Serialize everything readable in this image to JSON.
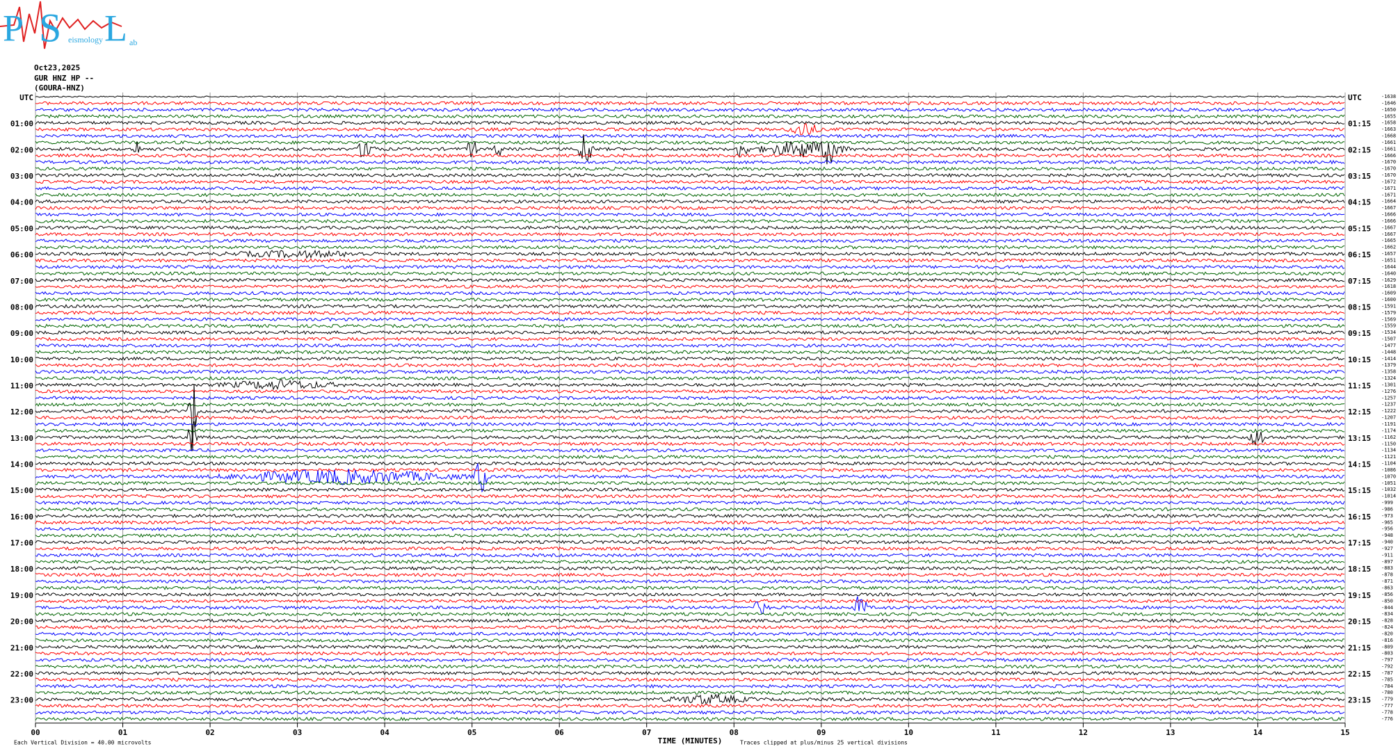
{
  "logo": {
    "letters": [
      "P",
      "S",
      "L"
    ],
    "words": [
      "eismology",
      "ab"
    ]
  },
  "chart_data": {
    "type": "helicorder",
    "date": "Oct23,2025",
    "station": "GUR HNZ HP --",
    "station_name": "(GOURA-HNZ)",
    "left_labels": [
      "UTC",
      "01:00",
      "02:00",
      "03:00",
      "04:00",
      "05:00",
      "06:00",
      "07:00",
      "08:00",
      "09:00",
      "10:00",
      "11:00",
      "12:00",
      "13:00",
      "14:00",
      "15:00",
      "16:00",
      "17:00",
      "18:00",
      "19:00",
      "20:00",
      "21:00",
      "22:00",
      "23:00"
    ],
    "right_labels": [
      "UTC",
      "01:15",
      "02:15",
      "03:15",
      "04:15",
      "05:15",
      "06:15",
      "07:15",
      "08:15",
      "09:15",
      "10:15",
      "11:15",
      "12:15",
      "13:15",
      "14:15",
      "15:15",
      "16:15",
      "17:15",
      "18:15",
      "19:15",
      "20:15",
      "21:15",
      "22:15",
      "23:15"
    ],
    "trace_colors": [
      "#000000",
      "#ff0000",
      "#0000ff",
      "#006400"
    ],
    "trace_offsets": [
      -1638,
      -1646,
      -1650,
      -1655,
      -1658,
      -1663,
      -1668,
      -1661,
      -1661,
      -1666,
      -1670,
      -1670,
      -1670,
      -1672,
      -1671,
      -1671,
      -1664,
      -1667,
      -1666,
      -1666,
      -1667,
      -1667,
      -1665,
      -1662,
      -1657,
      -1651,
      -1644,
      -1640,
      -1629,
      -1618,
      -1609,
      -1600,
      -1591,
      -1579,
      -1569,
      -1559,
      -1534,
      -1507,
      -1477,
      -1448,
      -1414,
      -1379,
      -1358,
      -1324,
      -1301,
      -1276,
      -1257,
      -1237,
      -1222,
      -1207,
      -1191,
      -1174,
      -1162,
      -1150,
      -1134,
      -1121,
      -1104,
      -1086,
      -1070,
      -1051,
      -1032,
      -1014,
      -999,
      -986,
      -973,
      -965,
      -956,
      -948,
      -940,
      -927,
      -911,
      -897,
      -883,
      -878,
      -871,
      -863,
      -856,
      -850,
      -844,
      -834,
      -828,
      -824,
      -820,
      -816,
      -809,
      -803,
      -797,
      -792,
      -787,
      -785,
      -784,
      -780,
      -779,
      -777,
      -778,
      -776
    ],
    "xlim": [
      0,
      15
    ],
    "xticks": [
      {
        "value": 0,
        "label": "00"
      },
      {
        "value": 1,
        "label": "01"
      },
      {
        "value": 2,
        "label": "02"
      },
      {
        "value": 3,
        "label": "03"
      },
      {
        "value": 4,
        "label": "04"
      },
      {
        "value": 5,
        "label": "05"
      },
      {
        "value": 6,
        "label": "06"
      },
      {
        "value": 7,
        "label": "07"
      },
      {
        "value": 8,
        "label": "08"
      },
      {
        "value": 9,
        "label": "09"
      },
      10,
      11,
      12,
      13,
      14,
      15
    ],
    "x_label": "TIME (MINUTES)",
    "scale_note": "Each Vertical Division =   40.00 microvolts",
    "clip_note": "Traces clipped at plus/minus 25 vertical divisions",
    "grid": true
  }
}
